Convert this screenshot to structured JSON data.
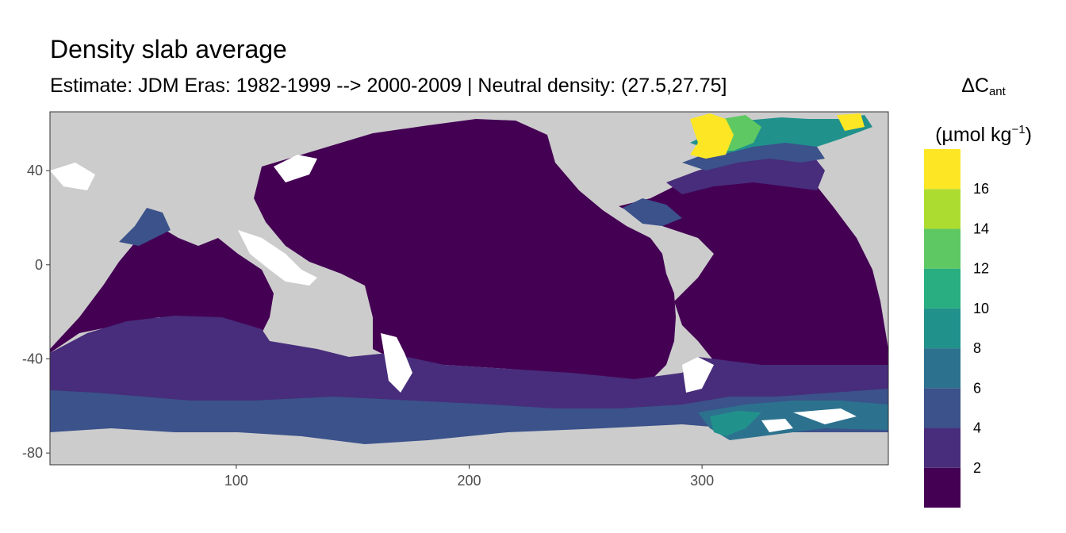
{
  "title": "Density slab average",
  "subtitle": "Estimate: JDM Eras: 1982-1999 --> 2000-2009 | Neutral density: (27.5,27.75]",
  "legend": {
    "symbol": "ΔC",
    "subscript": "ant",
    "unit_open": "(µmol kg",
    "unit_exp": "−1",
    "unit_close": ")",
    "breaks": [
      "2",
      "4",
      "6",
      "8",
      "10",
      "12",
      "14",
      "16"
    ],
    "colors": [
      "#440154",
      "#472d7b",
      "#3b528b",
      "#2c728e",
      "#21918c",
      "#28ae80",
      "#5ec962",
      "#addc30",
      "#fde725"
    ]
  },
  "axes": {
    "x_ticks": [
      "100",
      "200",
      "300"
    ],
    "y_ticks": [
      "40",
      "0",
      "-40",
      "-80"
    ]
  },
  "chart_data": {
    "type": "heatmap",
    "x_range": [
      20,
      380
    ],
    "y_range": [
      -85,
      65
    ],
    "x_tick_values": [
      100,
      200,
      300
    ],
    "y_tick_values": [
      40,
      0,
      -40,
      -80
    ],
    "value_bins": [
      0,
      2,
      4,
      6,
      8,
      10,
      12,
      14,
      16,
      18
    ],
    "land_color": "#cccccc",
    "no_data_color": "#ffffff"
  }
}
